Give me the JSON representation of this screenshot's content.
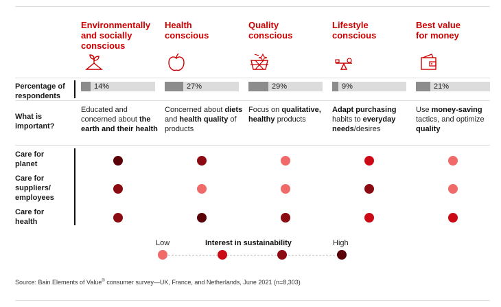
{
  "colors": {
    "low": "#f06a6a",
    "medium": "#cc0a16",
    "high": "#8c0a12",
    "very_high": "#5a0008",
    "accent": "#cc0000",
    "bar_fill": "#8c8c8c",
    "bar_track": "#dcdcdc"
  },
  "row_labels": {
    "percentage": "Percentage of\nrespondents",
    "important": "What is\nimportant?",
    "planet": "Care for\nplanet",
    "suppliers": "Care for\nsuppliers/\nemployees",
    "health": "Care for\nhealth"
  },
  "segments": [
    {
      "title": "Environmentally\nand socially\nconscious",
      "icon": "plant-icon",
      "percent_label": "14%",
      "desc": [
        {
          "t": "Educated and concerned about ",
          "b": false
        },
        {
          "t": "the earth and their health",
          "b": true
        }
      ]
    },
    {
      "title": "Health\nconscious",
      "icon": "apple-icon",
      "percent_label": "27%",
      "desc": [
        {
          "t": "Concerned about ",
          "b": false
        },
        {
          "t": "diets",
          "b": true
        },
        {
          "t": " and ",
          "b": false
        },
        {
          "t": "health quality",
          "b": true
        },
        {
          "t": " of products",
          "b": false
        }
      ]
    },
    {
      "title": "Quality\nconscious",
      "icon": "quality-icon",
      "percent_label": "29%",
      "desc": [
        {
          "t": "Focus on ",
          "b": false
        },
        {
          "t": "qualitative, healthy",
          "b": true
        },
        {
          "t": " products",
          "b": false
        }
      ]
    },
    {
      "title": "Lifestyle\nconscious",
      "icon": "seesaw-icon",
      "percent_label": "9%",
      "desc": [
        {
          "t": "Adapt purchasing",
          "b": true
        },
        {
          "t": " habits to ",
          "b": false
        },
        {
          "t": "everyday needs",
          "b": true
        },
        {
          "t": "/desires",
          "b": false
        }
      ]
    },
    {
      "title": "Best value\nfor money",
      "icon": "wallet-icon",
      "percent_label": "21%",
      "desc": [
        {
          "t": "Use ",
          "b": false
        },
        {
          "t": "money-saving",
          "b": true
        },
        {
          "t": " tactics, and optimize ",
          "b": false
        },
        {
          "t": "quality",
          "b": true
        }
      ]
    }
  ],
  "legend": {
    "low_label": "Low",
    "title": "Interest in sustainability",
    "high_label": "High"
  },
  "source": {
    "prefix": "Source: Bain Elements of Value",
    "mark": "®",
    "suffix": " consumer survey—UK, France, and Netherlands, June 2021 (n=8,303)"
  },
  "chart_data": {
    "type": "heatmap",
    "categories": [
      "Environmentally and socially conscious",
      "Health conscious",
      "Quality conscious",
      "Lifestyle conscious",
      "Best value for money"
    ],
    "percentage_of_respondents": [
      14,
      27,
      29,
      9,
      21
    ],
    "rows": [
      "Care for planet",
      "Care for suppliers/ employees",
      "Care for health"
    ],
    "scale": [
      "Low",
      "",
      "",
      "High"
    ],
    "levels": [
      [
        4,
        3,
        1,
        2,
        1
      ],
      [
        3,
        1,
        1,
        3,
        1
      ],
      [
        3,
        4,
        3,
        2,
        2
      ]
    ]
  }
}
